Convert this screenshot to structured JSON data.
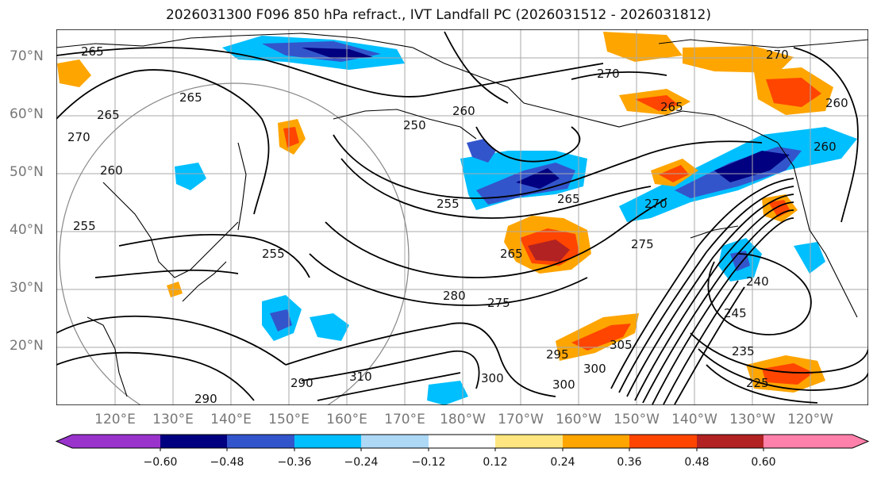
{
  "title": "2026031300 F096 850 hPa refract., IVT Landfall PC (2026031512 - 2026031812)",
  "lat_labels": [
    "70°N",
    "60°N",
    "50°N",
    "40°N",
    "30°N",
    "20°N"
  ],
  "lon_labels": [
    "120°E",
    "130°E",
    "140°E",
    "150°E",
    "160°E",
    "170°E",
    "180°W",
    "170°W",
    "160°W",
    "150°W",
    "140°W",
    "130°W",
    "120°W"
  ],
  "colorbar": {
    "ticks": [
      "−0.60",
      "−0.48",
      "−0.36",
      "−0.24",
      "−0.12",
      "0.12",
      "0.24",
      "0.36",
      "0.48",
      "0.60"
    ],
    "colors": [
      "#9933cc",
      "#000080",
      "#3355cc",
      "#00bfff",
      "#add8f6",
      "#ffffff",
      "#ffe680",
      "#ffa500",
      "#ff4500",
      "#b22222",
      "#ff80aa"
    ]
  },
  "contour_labels": [
    "265",
    "265",
    "270",
    "265",
    "260",
    "255",
    "250",
    "260",
    "255",
    "255",
    "265",
    "270",
    "275",
    "265",
    "270",
    "260",
    "270",
    "280",
    "275",
    "290",
    "290",
    "300",
    "310",
    "300",
    "300",
    "295",
    "305",
    "240",
    "245",
    "235",
    "225",
    "265",
    "260"
  ]
}
